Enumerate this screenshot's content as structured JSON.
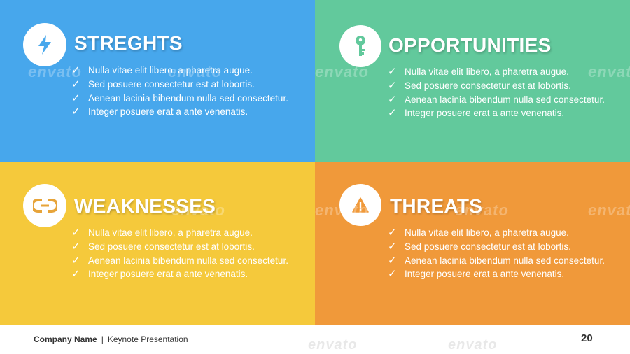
{
  "quadrants": {
    "strengths": {
      "title": "STREGHTS",
      "icon": "lightning-icon",
      "color": "#47a7ec",
      "bullets": [
        "Nulla vitae elit libero, a pharetra augue.",
        "Sed posuere consectetur est at lobortis.",
        "Aenean lacinia bibendum nulla sed consectetur.",
        "Integer posuere erat a ante venenatis."
      ]
    },
    "opportunities": {
      "title": "OPPORTUNITIES",
      "icon": "key-icon",
      "color": "#62c99c",
      "bullets": [
        "Nulla vitae elit libero, a pharetra augue.",
        "Sed posuere consectetur est at lobortis.",
        "Aenean lacinia bibendum nulla sed consectetur.",
        "Integer posuere erat a ante venenatis."
      ]
    },
    "weaknesses": {
      "title": "WEAKNESSES",
      "icon": "broken-chain-icon",
      "color": "#f5c93b",
      "bullets": [
        "Nulla vitae elit libero, a pharetra augue.",
        "Sed posuere consectetur est at lobortis.",
        "Aenean lacinia bibendum nulla sed consectetur.",
        "Integer posuere erat a ante venenatis."
      ]
    },
    "threats": {
      "title": "THREATS",
      "icon": "warning-icon",
      "color": "#f0993a",
      "bullets": [
        "Nulla vitae elit libero, a pharetra augue.",
        "Sed posuere consectetur est at lobortis.",
        "Aenean lacinia bibendum nulla sed consectetur.",
        "Integer posuere erat a ante venenatis."
      ]
    }
  },
  "footer": {
    "company_name": "Company Name",
    "separator": "|",
    "presentation": "Keynote Presentation",
    "page_number": "20"
  },
  "watermark_text": "envato",
  "check_glyph": "✓"
}
